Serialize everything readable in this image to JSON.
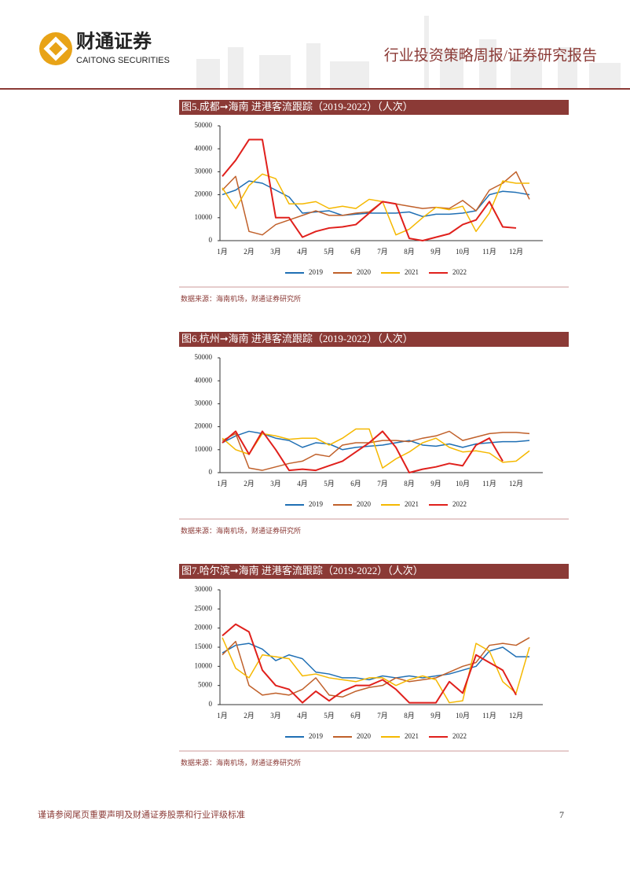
{
  "header": {
    "logo_text": "财通证券",
    "logo_subtext": "CAITONG SECURITIES",
    "report_type": "行业投资策略周报/证券研究报告"
  },
  "figures": [
    {
      "title": "图5.成都➞海南 进港客流跟踪（2019-2022）（人次）",
      "source": "数据来源：海南机场，财通证券研究所",
      "chart_data": {
        "type": "line",
        "categories": [
          "1月",
          null,
          "2月",
          null,
          "3月",
          null,
          "4月",
          null,
          "5月",
          null,
          "6月",
          null,
          "7月",
          null,
          "8月",
          null,
          "9月",
          null,
          "10月",
          null,
          "11月",
          null,
          "12月",
          null
        ],
        "ylim": [
          0,
          50000
        ],
        "yticks": [
          0,
          10000,
          20000,
          30000,
          40000,
          50000
        ],
        "grid": false,
        "series": [
          {
            "name": "2019",
            "color": "#1f6fb4",
            "values": [
              20000,
              22000,
              26000,
              25000,
              22000,
              19000,
              12000,
              12500,
              13000,
              11000,
              11500,
              12000,
              12000,
              12000,
              12500,
              10500,
              11500,
              11500,
              12000,
              13000,
              20000,
              21500,
              21000,
              20000
            ]
          },
          {
            "name": "2020",
            "color": "#c0602a",
            "values": [
              22000,
              28000,
              4000,
              2500,
              7000,
              9000,
              11000,
              13000,
              11000,
              11000,
              12000,
              12500,
              17000,
              16000,
              15000,
              14000,
              14500,
              14000,
              17500,
              13000,
              22000,
              25000,
              30000,
              18000
            ]
          },
          {
            "name": "2021",
            "color": "#f5b800",
            "values": [
              23000,
              14000,
              24000,
              29000,
              27000,
              16000,
              16000,
              17000,
              14000,
              15000,
              14000,
              18000,
              17000,
              2500,
              5000,
              10000,
              14500,
              13500,
              15000,
              4000,
              12000,
              26000,
              25000,
              25000
            ]
          },
          {
            "name": "2022",
            "color": "#e0201c",
            "values": [
              28000,
              35000,
              44000,
              44000,
              10000,
              10000,
              1500,
              4000,
              5500,
              6000,
              7000,
              12000,
              17000,
              16000,
              1000,
              0,
              1500,
              3000,
              7000,
              9000,
              17000,
              6000,
              5500,
              null
            ]
          }
        ]
      }
    },
    {
      "title": "图6.杭州➞海南 进港客流跟踪（2019-2022）（人次）",
      "source": "数据来源：海南机场，财通证券研究所",
      "chart_data": {
        "type": "line",
        "categories": [
          "1月",
          null,
          "2月",
          null,
          "3月",
          null,
          "4月",
          null,
          "5月",
          null,
          "6月",
          null,
          "7月",
          null,
          "8月",
          null,
          "9月",
          null,
          "10月",
          null,
          "11月",
          null,
          "12月",
          null
        ],
        "ylim": [
          0,
          50000
        ],
        "yticks": [
          0,
          10000,
          20000,
          30000,
          40000,
          50000
        ],
        "grid": false,
        "series": [
          {
            "name": "2019",
            "color": "#1f6fb4",
            "values": [
              13000,
              16000,
              18000,
              17000,
              15000,
              14000,
              11000,
              13000,
              12500,
              10000,
              11000,
              11500,
              12000,
              13000,
              14000,
              12000,
              11500,
              12500,
              11000,
              12500,
              13000,
              13500,
              13500,
              14000
            ]
          },
          {
            "name": "2020",
            "color": "#c0602a",
            "values": [
              14000,
              17000,
              2000,
              1000,
              2500,
              4000,
              5000,
              8000,
              7000,
              12000,
              13000,
              13000,
              14000,
              14000,
              13500,
              15000,
              16000,
              18000,
              14000,
              15500,
              17000,
              17500,
              17500,
              17000
            ]
          },
          {
            "name": "2021",
            "color": "#f5b800",
            "values": [
              15000,
              10000,
              8000,
              17000,
              16000,
              14500,
              15000,
              15000,
              12000,
              15000,
              19000,
              19000,
              2000,
              6000,
              9000,
              13000,
              15000,
              11000,
              9000,
              9500,
              8500,
              4500,
              5000,
              9500
            ]
          },
          {
            "name": "2022",
            "color": "#e0201c",
            "values": [
              13000,
              18000,
              8000,
              18000,
              10000,
              1000,
              1500,
              1000,
              3000,
              5000,
              9000,
              13000,
              18000,
              11000,
              0,
              1500,
              2500,
              4000,
              3000,
              12000,
              15000,
              5000,
              null,
              null
            ]
          }
        ]
      }
    },
    {
      "title": "图7.哈尔滨➞海南 进港客流跟踪（2019-2022）（人次）",
      "source": "数据来源：海南机场，财通证券研究所",
      "chart_data": {
        "type": "line",
        "categories": [
          "1月",
          null,
          "2月",
          null,
          "3月",
          null,
          "4月",
          null,
          "5月",
          null,
          "6月",
          null,
          "7月",
          null,
          "8月",
          null,
          "9月",
          null,
          "10月",
          null,
          "11月",
          null,
          "12月",
          null
        ],
        "ylim": [
          0,
          30000
        ],
        "yticks": [
          0,
          5000,
          10000,
          15000,
          20000,
          25000,
          30000
        ],
        "grid": false,
        "series": [
          {
            "name": "2019",
            "color": "#1f6fb4",
            "values": [
              13500,
              15500,
              16000,
              14500,
              11500,
              13000,
              12000,
              8500,
              8000,
              7000,
              7000,
              6500,
              7500,
              7000,
              7500,
              7000,
              7500,
              8000,
              9000,
              10000,
              14000,
              15000,
              12500,
              12500
            ]
          },
          {
            "name": "2020",
            "color": "#c0602a",
            "values": [
              13000,
              16500,
              5000,
              2500,
              3000,
              2500,
              4000,
              7000,
              2500,
              2000,
              3500,
              4500,
              5000,
              7000,
              6000,
              6500,
              7000,
              8500,
              10000,
              11000,
              15500,
              16000,
              15500,
              17500
            ]
          },
          {
            "name": "2021",
            "color": "#f5b800",
            "values": [
              17500,
              9500,
              7000,
              13000,
              12500,
              12000,
              7500,
              8000,
              7000,
              6500,
              6000,
              7000,
              7000,
              5000,
              6500,
              7500,
              6500,
              500,
              1000,
              16000,
              14000,
              6000,
              3000,
              15000
            ]
          },
          {
            "name": "2022",
            "color": "#e0201c",
            "values": [
              18000,
              21000,
              19000,
              9000,
              5000,
              4000,
              500,
              3500,
              1000,
              3500,
              5000,
              5000,
              6500,
              4000,
              500,
              500,
              500,
              6000,
              3000,
              13000,
              11000,
              9000,
              2500,
              null
            ]
          }
        ]
      }
    }
  ],
  "footer": {
    "disclaimer": "谨请参阅尾页重要声明及财通证券股票和行业评级标准",
    "page_number": "7"
  }
}
